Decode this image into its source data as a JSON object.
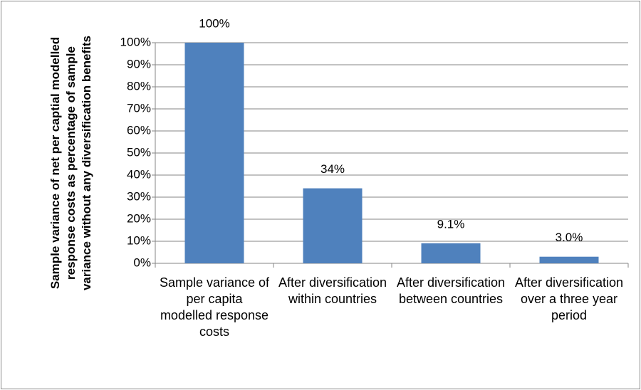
{
  "chart_data": {
    "type": "bar",
    "ylabel": "Sample variance of net per captial modelled response costs as percentage of sample variance without any diversification benefits",
    "categories": [
      "Sample variance of per capita modelled response costs",
      "After diversification within countries",
      "After diversification between countries",
      "After diversification over a three year period"
    ],
    "values": [
      100,
      34,
      9.1,
      3.0
    ],
    "value_labels": [
      "100%",
      "34%",
      "9.1%",
      "3.0%"
    ],
    "color": "#4f81bd",
    "ylim": [
      0,
      100
    ],
    "yticks": [
      {
        "value": 0,
        "label": "0%"
      },
      {
        "value": 10,
        "label": "10%"
      },
      {
        "value": 20,
        "label": "20%"
      },
      {
        "value": 30,
        "label": "30%"
      },
      {
        "value": 40,
        "label": "40%"
      },
      {
        "value": 50,
        "label": "50%"
      },
      {
        "value": 60,
        "label": "60%"
      },
      {
        "value": 70,
        "label": "70%"
      },
      {
        "value": 80,
        "label": "80%"
      },
      {
        "value": 90,
        "label": "90%"
      },
      {
        "value": 100,
        "label": "100%"
      }
    ],
    "grid": true
  }
}
